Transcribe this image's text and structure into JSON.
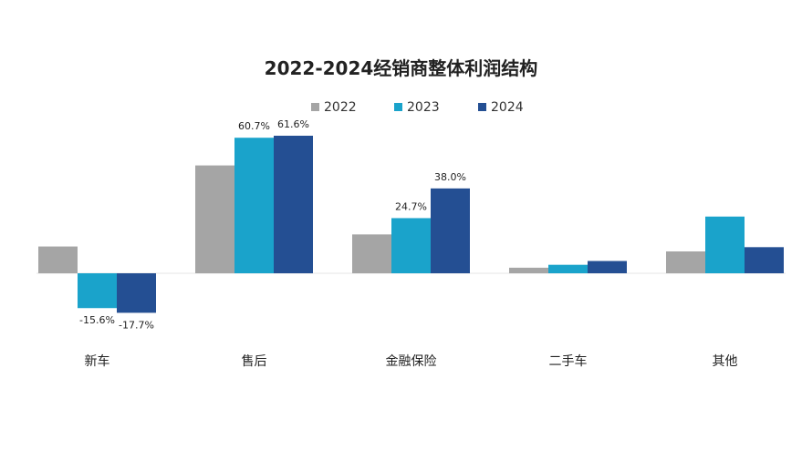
{
  "chart_data": {
    "type": "bar",
    "title": "2022-2024经销商整体利润结构",
    "categories": [
      "新车",
      "售后",
      "金融保险",
      "二手车",
      "其他"
    ],
    "series": [
      {
        "name": "2022",
        "color": "#a5a5a5",
        "values": [
          12.0,
          48.3,
          17.4,
          2.5,
          9.8
        ],
        "labels": [
          "",
          "",
          "",
          "",
          ""
        ]
      },
      {
        "name": "2023",
        "color": "#1aa3cb",
        "values": [
          -15.6,
          60.7,
          24.7,
          3.8,
          25.4
        ],
        "labels": [
          "-15.6%",
          "60.7%",
          "24.7%",
          "",
          ""
        ]
      },
      {
        "name": "2024",
        "color": "#244f93",
        "values": [
          -17.7,
          61.6,
          38.0,
          5.5,
          11.7
        ],
        "labels": [
          "-17.7%",
          "61.6%",
          "38.0%",
          "",
          ""
        ]
      }
    ],
    "ylim": [
      -20,
      65
    ],
    "xlabel": "",
    "ylabel": "",
    "grid": false,
    "legend": "top"
  }
}
